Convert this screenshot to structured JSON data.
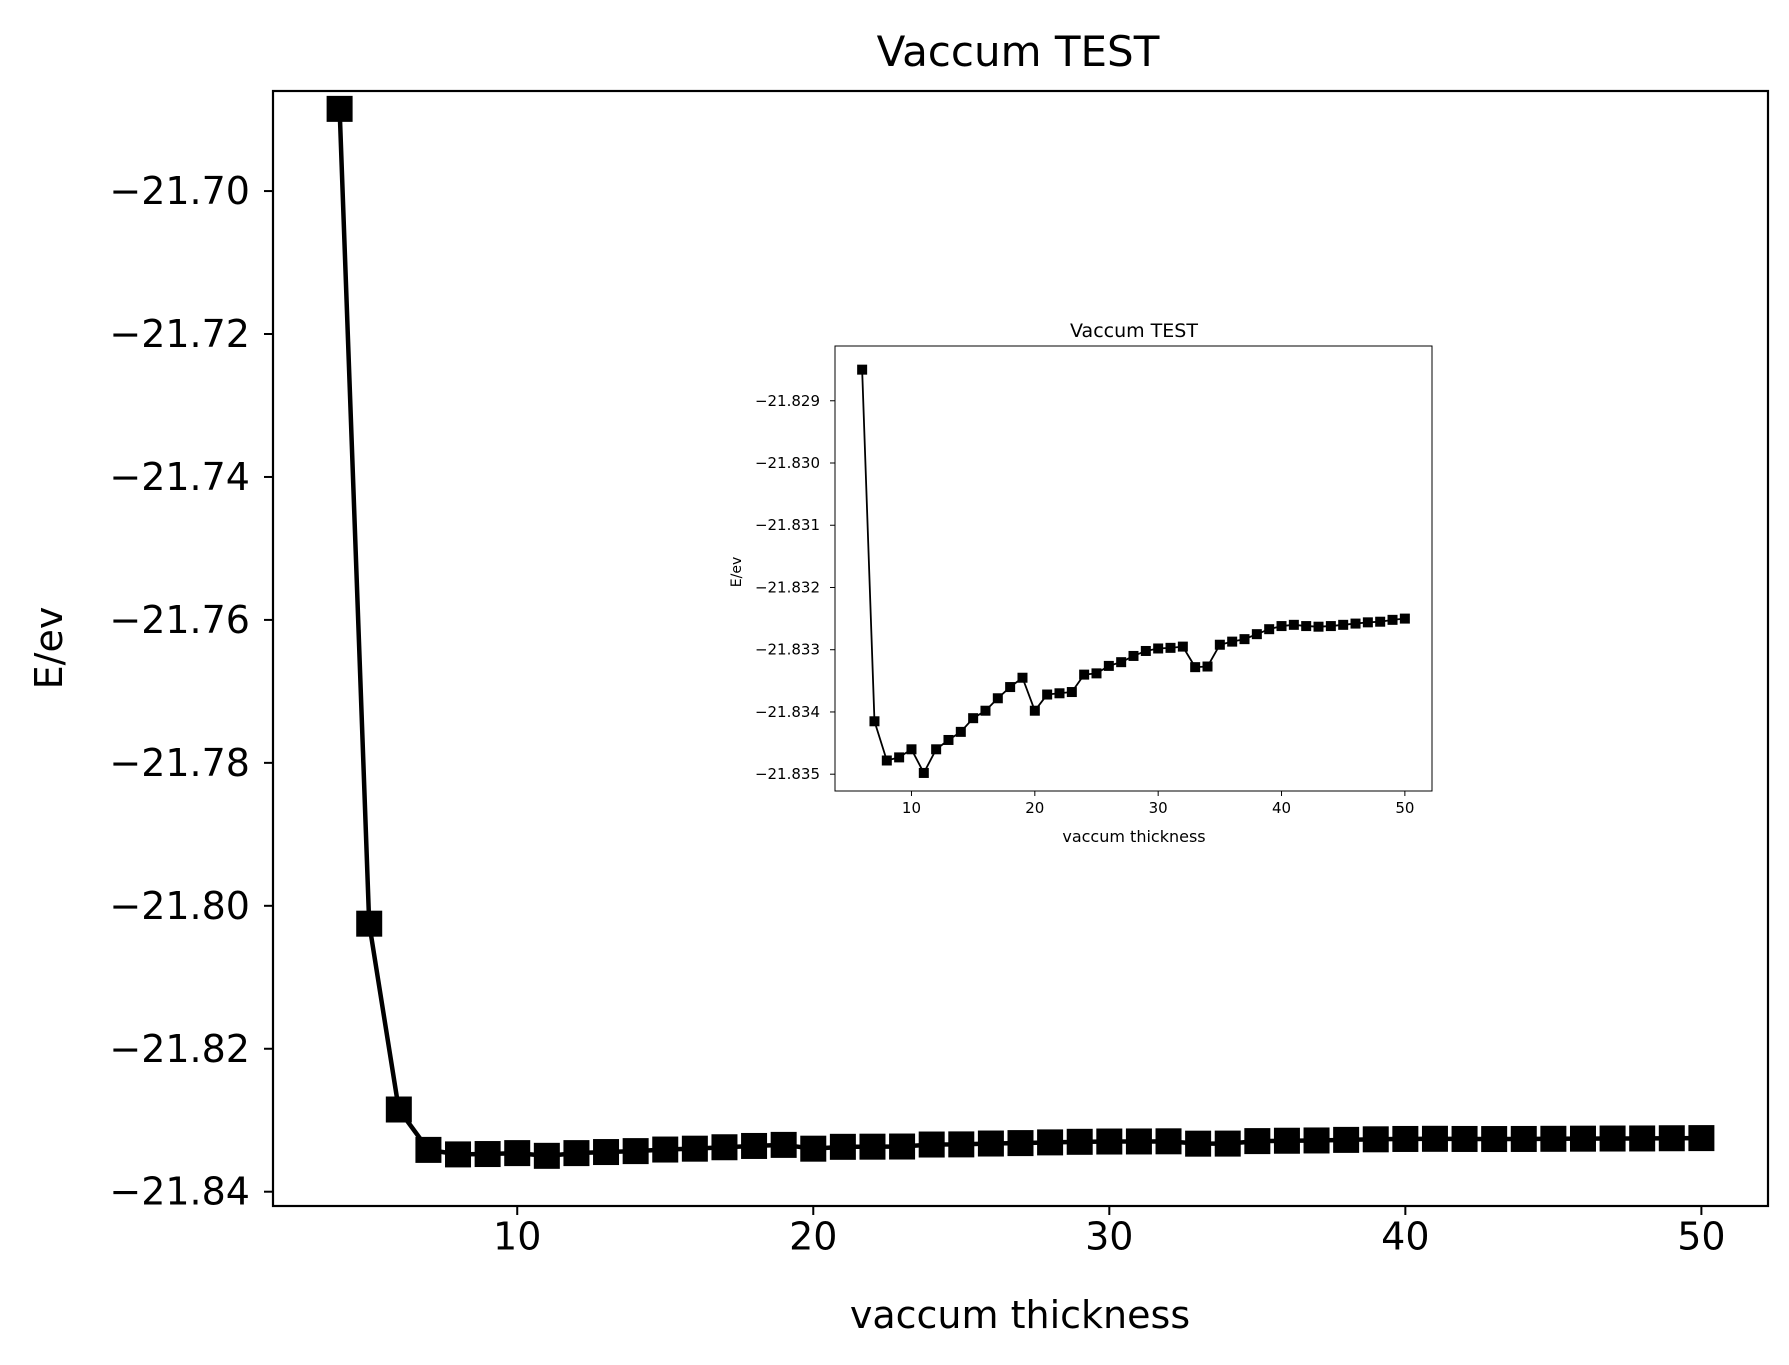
{
  "chart_data": [
    {
      "type": "line",
      "title": "Vaccum TEST",
      "xlabel": "vaccum thickness",
      "ylabel": "E/ev",
      "xlim": [
        1.75,
        52.25
      ],
      "ylim": [
        -21.842,
        -21.686
      ],
      "xticks": [
        10,
        20,
        30,
        40,
        50
      ],
      "xtick_labels": [
        "10",
        "20",
        "30",
        "40",
        "50"
      ],
      "yticks": [
        -21.84,
        -21.82,
        -21.8,
        -21.78,
        -21.76,
        -21.74,
        -21.72,
        -21.7
      ],
      "ytick_labels": [
        "−21.84",
        "−21.82",
        "−21.80",
        "−21.78",
        "−21.76",
        "−21.74",
        "−21.72",
        "−21.70"
      ],
      "grid": false,
      "marker": "square",
      "color": "#000000",
      "series": [
        {
          "x": [
            4,
            5,
            6,
            7,
            8,
            9,
            10,
            11,
            12,
            13,
            14,
            15,
            16,
            17,
            18,
            19,
            20,
            21,
            22,
            23,
            24,
            25,
            26,
            27,
            28,
            29,
            30,
            31,
            32,
            33,
            34,
            35,
            36,
            37,
            38,
            39,
            40,
            41,
            42,
            43,
            44,
            45,
            46,
            47,
            48,
            49,
            50
          ],
          "y": [
            -21.6885,
            -21.8025,
            -21.8285,
            -21.83415,
            -21.83478,
            -21.83473,
            -21.8346,
            -21.83498,
            -21.8346,
            -21.83445,
            -21.83432,
            -21.8341,
            -21.83398,
            -21.83378,
            -21.8336,
            -21.83345,
            -21.83398,
            -21.83372,
            -21.8337,
            -21.83368,
            -21.8334,
            -21.83338,
            -21.83326,
            -21.8332,
            -21.8331,
            -21.83302,
            -21.83298,
            -21.83297,
            -21.83295,
            -21.83328,
            -21.83327,
            -21.83292,
            -21.83287,
            -21.83283,
            -21.83275,
            -21.83267,
            -21.83262,
            -21.8326,
            -21.83262,
            -21.83263,
            -21.83262,
            -21.8326,
            -21.83258,
            -21.83256,
            -21.83255,
            -21.83252,
            -21.8325
          ]
        }
      ]
    },
    {
      "type": "line",
      "title": "Vaccum TEST",
      "xlabel": "vaccum thickness",
      "ylabel": "E/ev",
      "xlim": [
        3.8,
        52.2
      ],
      "ylim": [
        -21.83527,
        -21.82812
      ],
      "xticks": [
        10,
        20,
        30,
        40,
        50
      ],
      "xtick_labels": [
        "10",
        "20",
        "30",
        "40",
        "50"
      ],
      "yticks": [
        -21.835,
        -21.834,
        -21.833,
        -21.832,
        -21.831,
        -21.83,
        -21.829
      ],
      "ytick_labels": [
        "−21.835",
        "−21.834",
        "−21.833",
        "−21.832",
        "−21.831",
        "−21.830",
        "−21.829"
      ],
      "grid": false,
      "marker": "square",
      "color": "#000000",
      "series": [
        {
          "x": [
            6,
            7,
            8,
            9,
            10,
            11,
            12,
            13,
            14,
            15,
            16,
            17,
            18,
            19,
            20,
            21,
            22,
            23,
            24,
            25,
            26,
            27,
            28,
            29,
            30,
            31,
            32,
            33,
            34,
            35,
            36,
            37,
            38,
            39,
            40,
            41,
            42,
            43,
            44,
            45,
            46,
            47,
            48,
            49,
            50
          ],
          "y": [
            -21.8285,
            -21.83415,
            -21.83478,
            -21.83473,
            -21.8346,
            -21.83498,
            -21.8346,
            -21.83445,
            -21.83432,
            -21.8341,
            -21.83398,
            -21.83378,
            -21.8336,
            -21.83345,
            -21.83398,
            -21.83372,
            -21.8337,
            -21.83368,
            -21.8334,
            -21.83338,
            -21.83326,
            -21.8332,
            -21.8331,
            -21.83302,
            -21.83298,
            -21.83297,
            -21.83295,
            -21.83328,
            -21.83327,
            -21.83292,
            -21.83287,
            -21.83283,
            -21.83275,
            -21.83267,
            -21.83262,
            -21.8326,
            -21.83262,
            -21.83263,
            -21.83262,
            -21.8326,
            -21.83258,
            -21.83256,
            -21.83255,
            -21.83252,
            -21.8325
          ]
        }
      ]
    }
  ]
}
